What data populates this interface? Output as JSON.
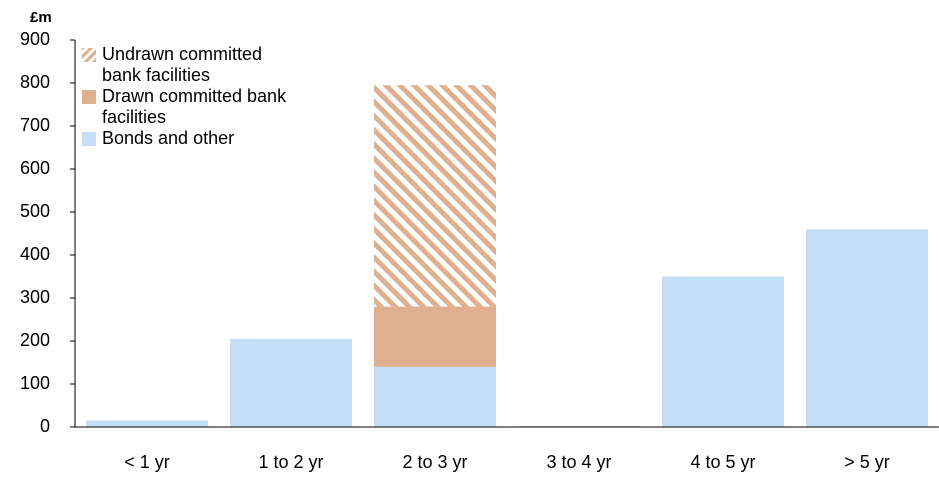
{
  "chart_data": {
    "type": "stacked_bar",
    "y_unit_label": "£m",
    "categories": [
      "< 1 yr",
      "1 to 2 yr",
      "2 to 3 yr",
      "3 to 4 yr",
      "4 to 5 yr",
      "> 5 yr"
    ],
    "series": [
      {
        "name": "Undrawn committed bank facilities",
        "color": "#dfb08f",
        "hatch": true,
        "values": [
          0,
          0,
          515,
          0,
          0,
          0
        ]
      },
      {
        "name": "Drawn committed bank facilities",
        "color": "#dfb08f",
        "hatch": false,
        "values": [
          0,
          0,
          140,
          0,
          0,
          0
        ]
      },
      {
        "name": "Bonds and other",
        "color": "#c5dff8",
        "hatch": false,
        "values": [
          15,
          205,
          140,
          2,
          350,
          460
        ]
      }
    ],
    "ylim": [
      0,
      900
    ],
    "yticks": [
      0,
      100,
      200,
      300,
      400,
      500,
      600,
      700,
      800,
      900
    ],
    "grid": false
  }
}
